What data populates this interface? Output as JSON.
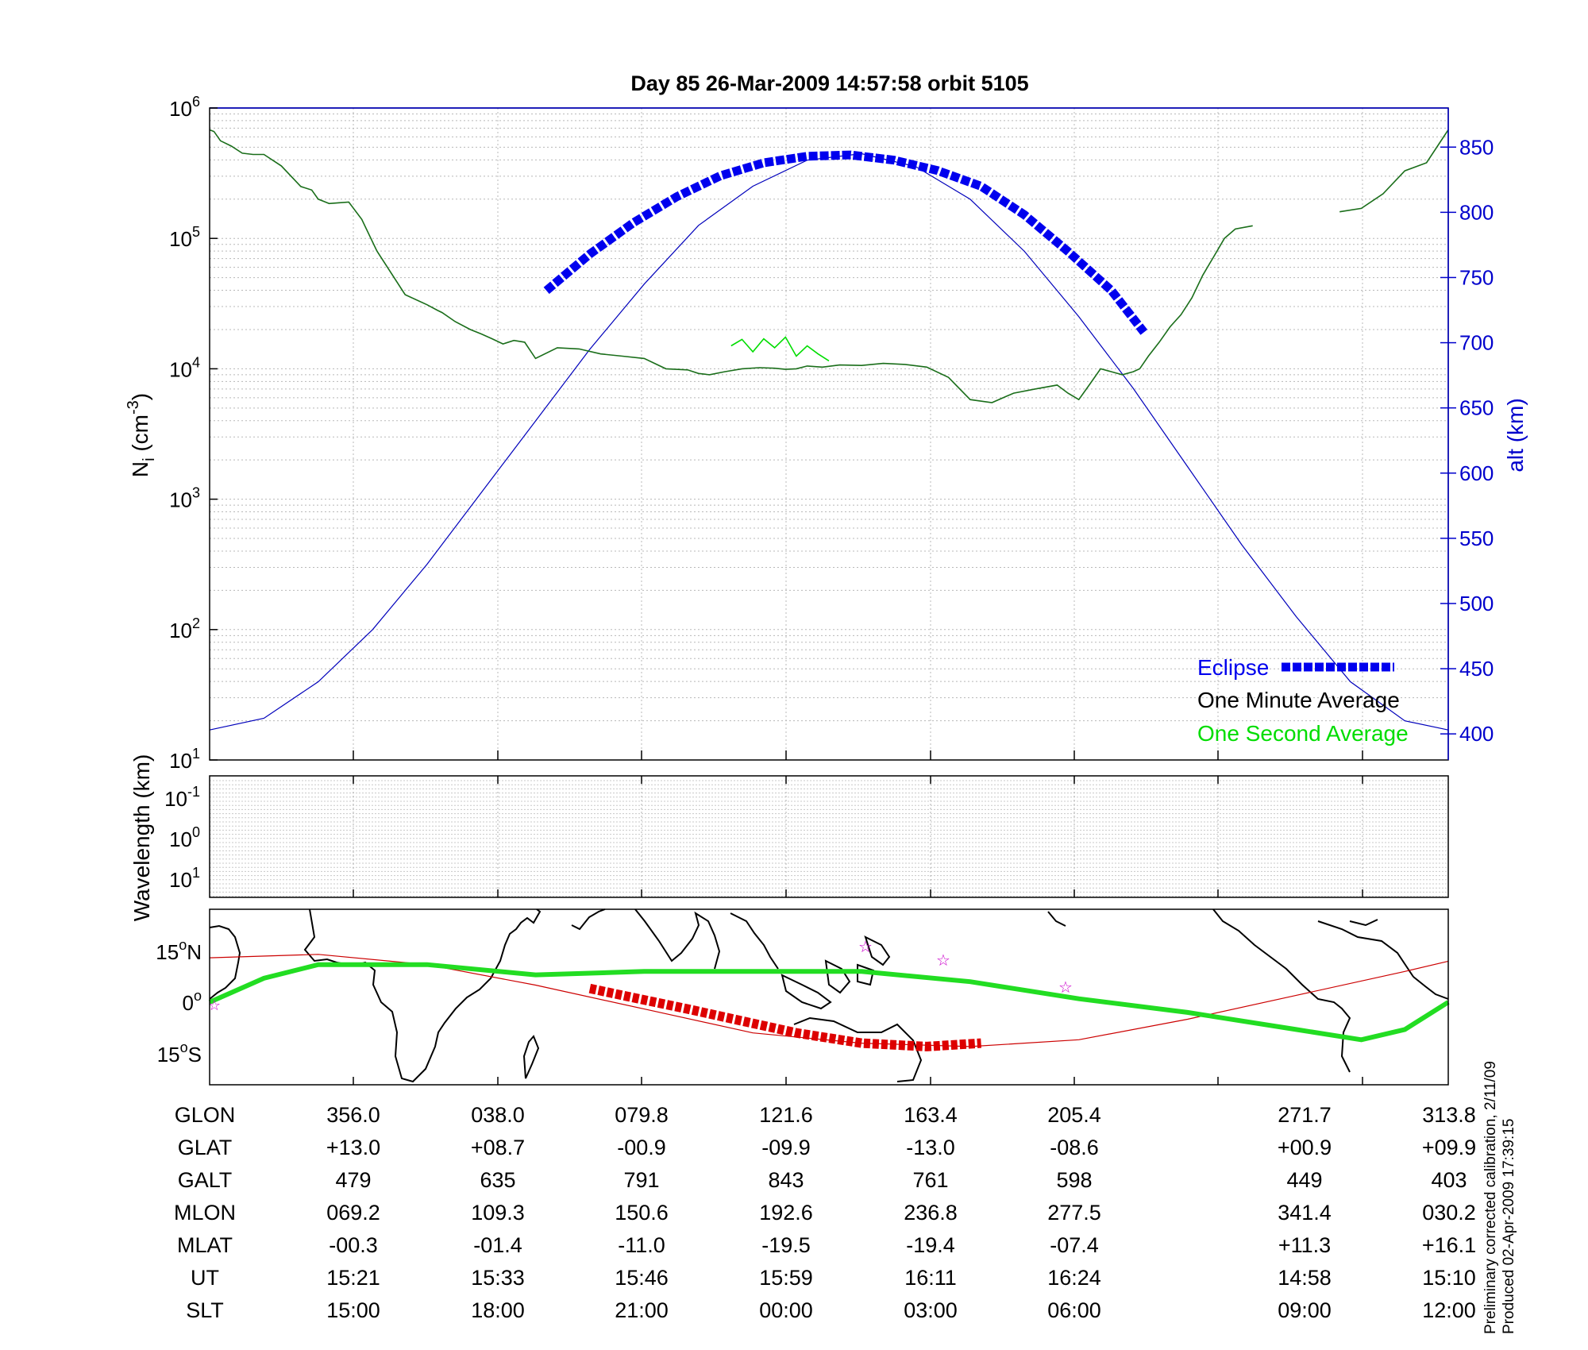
{
  "chart_data": [
    {
      "type": "line",
      "title": "Day 85  26-Mar-2009 14:57:58   orbit 5105",
      "ylabel_main": "N",
      "ylabel_sub": "i",
      "ylabel_unit": " (cm",
      "ylabel_unit_sup": "-3",
      "ylabel_close": ")",
      "y_scale": "log",
      "ylim": [
        10,
        1000000
      ],
      "y_ticks": [
        {
          "base": "10",
          "exp": "1"
        },
        {
          "base": "10",
          "exp": "2"
        },
        {
          "base": "10",
          "exp": "3"
        },
        {
          "base": "10",
          "exp": "4"
        },
        {
          "base": "10",
          "exp": "5"
        },
        {
          "base": "10",
          "exp": "6"
        }
      ],
      "y2label": "alt (km)",
      "y2lim": [
        380,
        880
      ],
      "y2_ticks": [
        "400",
        "450",
        "500",
        "550",
        "600",
        "650",
        "700",
        "750",
        "800",
        "850"
      ],
      "grid": true,
      "legend": [
        "Eclipse",
        "One Minute Average",
        "One Second Average"
      ],
      "colors": {
        "density": "#1a6e1a",
        "second_avg": "#00dd00",
        "altitude": "#0000bb",
        "eclipse": "#0000ee",
        "axis2": "#0000cc"
      },
      "series": [
        {
          "name": "One Minute Average",
          "x": [
            0,
            0.02,
            0.05,
            0.1,
            0.15,
            0.2,
            0.25,
            0.33,
            0.42,
            0.47,
            0.5,
            0.55,
            0.64,
            0.7,
            0.77,
            0.9,
            1.0,
            1.05,
            1.07,
            1.13,
            1.2,
            1.25,
            1.3,
            1.35,
            1.4,
            1.45,
            1.5,
            1.6,
            1.7,
            1.8,
            1.9,
            2.0,
            2.1,
            2.2,
            2.25,
            2.3,
            2.37,
            2.45,
            2.53,
            2.6,
            2.65,
            2.7,
            2.75,
            2.82,
            2.9,
            3.0,
            3.1,
            3.2,
            3.3,
            3.4,
            3.5,
            3.6,
            3.7,
            3.8,
            3.9,
            3.95,
            4.0,
            4.05,
            4.1,
            4.15,
            4.2,
            4.25,
            4.28,
            4.32,
            4.37,
            4.42,
            4.47,
            4.52,
            4.57,
            4.62,
            4.67,
            4.72,
            4.8,
            4.9,
            5.0,
            5.1,
            5.2,
            5.3,
            5.4,
            5.5,
            5.6,
            5.7
          ],
          "y": [
            680000,
            660000,
            560000,
            510000,
            450000,
            440000,
            440000,
            360000,
            250000,
            235000,
            200000,
            185000,
            190000,
            140000,
            80000,
            37000,
            31000,
            28000,
            27000,
            23000,
            20000,
            18500,
            17000,
            15500,
            16500,
            16000,
            12000,
            14500,
            14200,
            13000,
            12500,
            12000,
            10000,
            9800,
            9200,
            9000,
            9500,
            10000,
            10200,
            10100,
            9900,
            10000,
            10500,
            10300,
            10700,
            10600,
            11000,
            10800,
            10300,
            8600,
            5800,
            5500,
            6500,
            7000,
            7500,
            6500,
            5800,
            7600,
            10000,
            9500,
            9000,
            9500,
            10000,
            12500,
            16000,
            21000,
            26000,
            35000,
            52000,
            72000,
            100000,
            118000,
            125000,
            null,
            null,
            null,
            160000,
            170000,
            220000,
            330000,
            380000,
            680000
          ]
        },
        {
          "name": "One Second Average",
          "x": [
            2.4,
            2.45,
            2.5,
            2.55,
            2.6,
            2.65,
            2.7,
            2.75,
            2.8,
            2.85
          ],
          "y": [
            15000,
            16800,
            13500,
            17000,
            14500,
            17500,
            12500,
            15000,
            13000,
            11500
          ]
        },
        {
          "name": "altitude",
          "x": [
            0,
            0.25,
            0.5,
            0.75,
            1.0,
            1.25,
            1.5,
            1.75,
            2.0,
            2.25,
            2.5,
            2.75,
            3.0,
            3.25,
            3.5,
            3.75,
            4.0,
            4.25,
            4.5,
            4.75,
            5.0,
            5.25,
            5.5,
            5.7
          ],
          "y": [
            403,
            412,
            440,
            480,
            530,
            585,
            640,
            695,
            745,
            790,
            820,
            840,
            845,
            835,
            810,
            770,
            720,
            665,
            605,
            545,
            490,
            440,
            410,
            403
          ]
        },
        {
          "name": "Eclipse",
          "x": [
            1.55,
            1.75,
            1.95,
            2.15,
            2.35,
            2.55,
            2.75,
            2.95,
            3.15,
            3.35,
            3.55,
            3.75,
            3.95,
            4.15,
            4.3
          ],
          "y": [
            740,
            768,
            792,
            812,
            828,
            838,
            843,
            844,
            840,
            832,
            820,
            798,
            770,
            740,
            708
          ]
        }
      ]
    },
    {
      "type": "heatmap",
      "ylabel": "Wavelength (km)",
      "y_ticks": [
        {
          "base": "10",
          "exp": "-1"
        },
        {
          "base": "10",
          "exp": "0"
        },
        {
          "base": "10",
          "exp": "1"
        }
      ]
    },
    {
      "type": "line",
      "y_ticks": [
        "15°N",
        "0°",
        "15°S"
      ],
      "y_ticks_parts": [
        {
          "num": "15",
          "deg": "o",
          "hemi": "N"
        },
        {
          "num": "0",
          "deg": "o",
          "hemi": ""
        },
        {
          "num": "15",
          "deg": "o",
          "hemi": "S"
        }
      ],
      "series": [
        {
          "name": "orbit track",
          "x": [
            0,
            0.5,
            1.0,
            1.5,
            2.0,
            2.5,
            3.0,
            3.5,
            4.0,
            4.5,
            5.0,
            5.5,
            5.7
          ],
          "y": [
            13,
            14,
            11,
            5,
            -2,
            -9,
            -12,
            -13,
            -11,
            -5,
            2,
            9,
            12
          ]
        },
        {
          "name": "magnetic equator",
          "x": [
            0,
            0.25,
            0.5,
            1.0,
            1.5,
            2.0,
            2.5,
            3.0,
            3.5,
            4.0,
            4.5,
            5.0,
            5.3,
            5.5,
            5.7
          ],
          "y": [
            0,
            7,
            11,
            11,
            8,
            9,
            9,
            9,
            6,
            1,
            -3,
            -8,
            -11,
            -8,
            0
          ]
        },
        {
          "name": "eclipse track",
          "x": [
            1.75,
            2.2,
            2.7,
            3.0,
            3.3,
            3.55
          ],
          "y": [
            4,
            -2,
            -9,
            -12,
            -13,
            -12
          ]
        }
      ]
    }
  ],
  "table": {
    "rows": [
      {
        "label": "GLON",
        "values": [
          "356.0",
          "038.0",
          "079.8",
          "121.6",
          "163.4",
          "205.4",
          "271.7",
          "313.8"
        ]
      },
      {
        "label": "GLAT",
        "values": [
          "+13.0",
          "+08.7",
          "-00.9",
          "-09.9",
          "-13.0",
          "-08.6",
          "+00.9",
          "+09.9"
        ]
      },
      {
        "label": "GALT",
        "values": [
          "479",
          "635",
          "791",
          "843",
          "761",
          "598",
          "449",
          "403"
        ]
      },
      {
        "label": "MLON",
        "values": [
          "069.2",
          "109.3",
          "150.6",
          "192.6",
          "236.8",
          "277.5",
          "341.4",
          "030.2"
        ]
      },
      {
        "label": "MLAT",
        "values": [
          "-00.3",
          "-01.4",
          "-11.0",
          "-19.5",
          "-19.4",
          "-07.4",
          "+11.3",
          "+16.1"
        ]
      },
      {
        "label": "UT",
        "values": [
          "15:21",
          "15:33",
          "15:46",
          "15:59",
          "16:11",
          "16:24",
          "14:58",
          "15:10"
        ]
      },
      {
        "label": "SLT",
        "values": [
          "15:00",
          "18:00",
          "21:00",
          "00:00",
          "03:00",
          "06:00",
          "09:00",
          "12:00"
        ]
      }
    ]
  },
  "notes": {
    "line1": "Preliminary corrected calibration, 2/11/09",
    "line2": "Produced 02-Apr-2009 17:39:15"
  }
}
